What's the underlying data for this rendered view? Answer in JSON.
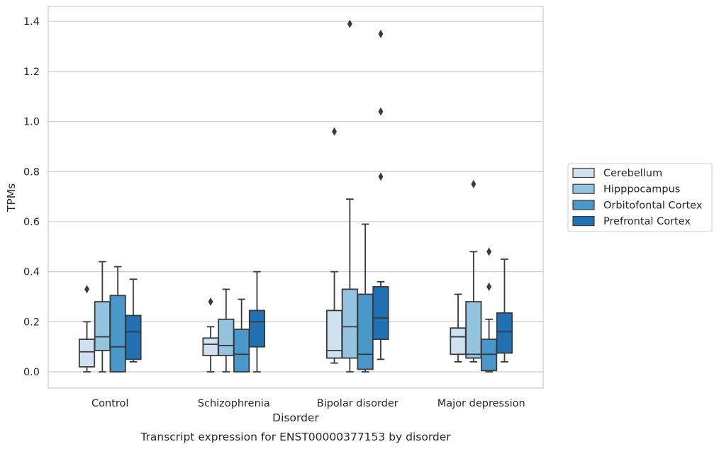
{
  "caption": "Transcript expression for ENST00000377153 by disorder",
  "chart_data": {
    "type": "box",
    "xlabel": "Disorder",
    "ylabel": "TPMs",
    "ylim": [
      -0.065,
      1.46
    ],
    "yticks": [
      0.0,
      0.2,
      0.4,
      0.6,
      0.8,
      1.0,
      1.2,
      1.4
    ],
    "ytick_labels": [
      "0.0",
      "0.2",
      "0.4",
      "0.6",
      "0.8",
      "1.0",
      "1.2",
      "1.4"
    ],
    "grid": "horizontal",
    "legend_position": "right",
    "categories": [
      "Control",
      "Schizophrenia",
      "Bipolar disorder",
      "Major depression"
    ],
    "series": [
      {
        "name": "Cerebellum",
        "color": "#d0e1f2",
        "boxes": [
          {
            "whislo": 0.0,
            "q1": 0.02,
            "med": 0.08,
            "q3": 0.13,
            "whishi": 0.2,
            "fliers": [
              0.33
            ]
          },
          {
            "whislo": 0.0,
            "q1": 0.065,
            "med": 0.11,
            "q3": 0.135,
            "whishi": 0.18,
            "fliers": [
              0.28
            ]
          },
          {
            "whislo": 0.035,
            "q1": 0.055,
            "med": 0.085,
            "q3": 0.245,
            "whishi": 0.4,
            "fliers": [
              0.96
            ]
          },
          {
            "whislo": 0.04,
            "q1": 0.07,
            "med": 0.14,
            "q3": 0.175,
            "whishi": 0.31,
            "fliers": []
          }
        ]
      },
      {
        "name": "Hipppocampus",
        "color": "#94c4df",
        "boxes": [
          {
            "whislo": 0.0,
            "q1": 0.085,
            "med": 0.14,
            "q3": 0.28,
            "whishi": 0.44,
            "fliers": []
          },
          {
            "whislo": 0.0,
            "q1": 0.065,
            "med": 0.105,
            "q3": 0.21,
            "whishi": 0.33,
            "fliers": []
          },
          {
            "whislo": 0.0,
            "q1": 0.055,
            "med": 0.18,
            "q3": 0.33,
            "whishi": 0.69,
            "fliers": [
              1.39
            ]
          },
          {
            "whislo": 0.04,
            "q1": 0.055,
            "med": 0.07,
            "q3": 0.28,
            "whishi": 0.48,
            "fliers": [
              0.75
            ]
          }
        ]
      },
      {
        "name": "Orbitofontal Cortex",
        "color": "#4a98c9",
        "boxes": [
          {
            "whislo": 0.0,
            "q1": 0.0,
            "med": 0.1,
            "q3": 0.305,
            "whishi": 0.42,
            "fliers": []
          },
          {
            "whislo": 0.0,
            "q1": 0.0,
            "med": 0.07,
            "q3": 0.17,
            "whishi": 0.29,
            "fliers": []
          },
          {
            "whislo": 0.0,
            "q1": 0.01,
            "med": 0.07,
            "q3": 0.31,
            "whishi": 0.59,
            "fliers": []
          },
          {
            "whislo": 0.0,
            "q1": 0.005,
            "med": 0.07,
            "q3": 0.13,
            "whishi": 0.21,
            "fliers": [
              0.34,
              0.48
            ]
          }
        ]
      },
      {
        "name": "Prefrontal Cortex",
        "color": "#2171b5",
        "boxes": [
          {
            "whislo": 0.04,
            "q1": 0.05,
            "med": 0.16,
            "q3": 0.225,
            "whishi": 0.37,
            "fliers": []
          },
          {
            "whislo": 0.0,
            "q1": 0.1,
            "med": 0.2,
            "q3": 0.245,
            "whishi": 0.4,
            "fliers": []
          },
          {
            "whislo": 0.05,
            "q1": 0.13,
            "med": 0.215,
            "q3": 0.34,
            "whishi": 0.36,
            "fliers": [
              0.78,
              1.04,
              1.35
            ]
          },
          {
            "whislo": 0.04,
            "q1": 0.075,
            "med": 0.16,
            "q3": 0.235,
            "whishi": 0.45,
            "fliers": []
          }
        ]
      }
    ]
  }
}
